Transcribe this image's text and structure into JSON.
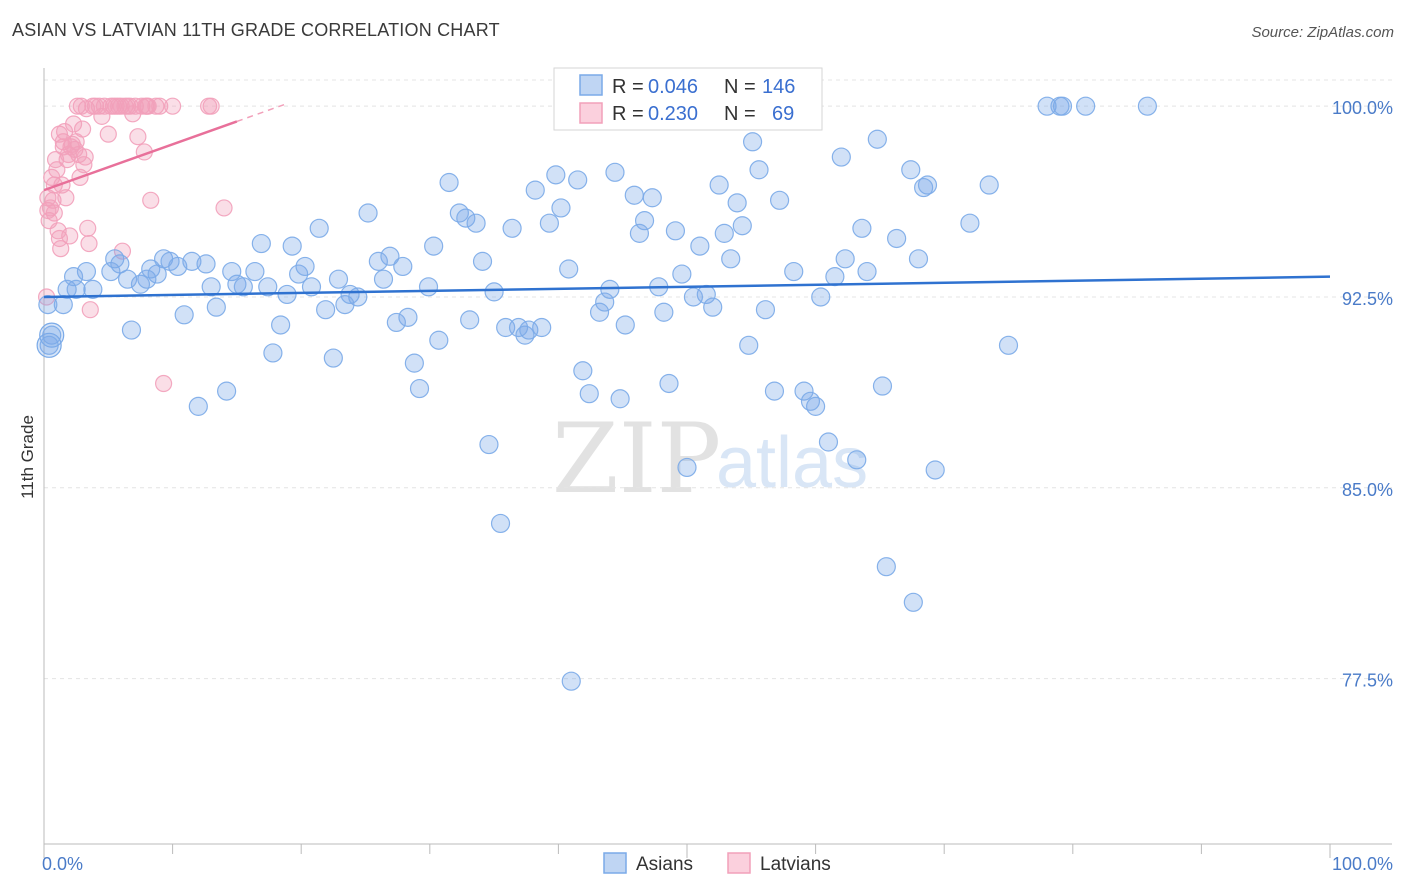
{
  "title": "ASIAN VS LATVIAN 11TH GRADE CORRELATION CHART",
  "source": "Source: ZipAtlas.com",
  "watermark": {
    "zip": "ZIP",
    "atlas": "atlas"
  },
  "colors": {
    "asian": "#7aaae8",
    "asian_line": "#2f72d0",
    "latvian": "#f2a0ba",
    "latvian_line": "#e8709a",
    "tick_text": "#4a7bc8"
  },
  "chart_data": {
    "type": "scatter",
    "title": "ASIAN VS LATVIAN 11TH GRADE CORRELATION CHART",
    "xlabel": "",
    "ylabel": "11th Grade",
    "xlim": [
      0,
      100
    ],
    "ylim": [
      71.0,
      101.5
    ],
    "y_ticks": [
      77.5,
      85.0,
      92.5,
      100.0
    ],
    "y_tick_labels": [
      "77.5%",
      "85.0%",
      "92.5%",
      "100.0%"
    ],
    "x_tick_labels": [
      "0.0%",
      "100.0%"
    ],
    "grid": true,
    "legend_position": "top-center",
    "legend": [
      {
        "series": "Asians",
        "r_label": "R =",
        "r_value": "0.046",
        "n_label": "N =",
        "n_value": "146"
      },
      {
        "series": "Latvians",
        "r_label": "R =",
        "r_value": "0.230",
        "n_label": "N =",
        "n_value": "69"
      }
    ],
    "series": [
      {
        "name": "Asians",
        "trend": {
          "x0": 0,
          "y0": 92.5,
          "x1": 100,
          "y1": 93.3
        },
        "points": [
          [
            0.3,
            92.2
          ],
          [
            0.4,
            90.6
          ],
          [
            0.6,
            91.0
          ],
          [
            1.5,
            92.2
          ],
          [
            1.8,
            92.8
          ],
          [
            2.3,
            93.3
          ],
          [
            2.5,
            92.8
          ],
          [
            3.3,
            93.5
          ],
          [
            3.8,
            92.8
          ],
          [
            5.2,
            93.5
          ],
          [
            5.5,
            94.0
          ],
          [
            5.9,
            93.8
          ],
          [
            6.5,
            93.2
          ],
          [
            6.8,
            91.2
          ],
          [
            7.5,
            93.0
          ],
          [
            8.0,
            93.2
          ],
          [
            8.3,
            93.6
          ],
          [
            8.8,
            93.4
          ],
          [
            9.3,
            94.0
          ],
          [
            9.8,
            93.9
          ],
          [
            10.4,
            93.7
          ],
          [
            10.9,
            91.8
          ],
          [
            11.5,
            93.9
          ],
          [
            12.0,
            88.2
          ],
          [
            12.6,
            93.8
          ],
          [
            13.0,
            92.9
          ],
          [
            13.4,
            92.1
          ],
          [
            14.2,
            88.8
          ],
          [
            14.6,
            93.5
          ],
          [
            15.0,
            93.0
          ],
          [
            15.5,
            92.9
          ],
          [
            16.4,
            93.5
          ],
          [
            16.9,
            94.6
          ],
          [
            17.4,
            92.9
          ],
          [
            17.8,
            90.3
          ],
          [
            18.4,
            91.4
          ],
          [
            18.9,
            92.6
          ],
          [
            19.3,
            94.5
          ],
          [
            19.8,
            93.4
          ],
          [
            20.3,
            93.7
          ],
          [
            20.8,
            92.9
          ],
          [
            21.4,
            95.2
          ],
          [
            21.9,
            92.0
          ],
          [
            22.5,
            90.1
          ],
          [
            22.9,
            93.2
          ],
          [
            23.4,
            92.2
          ],
          [
            23.8,
            92.6
          ],
          [
            24.4,
            92.5
          ],
          [
            25.2,
            95.8
          ],
          [
            26.0,
            93.9
          ],
          [
            26.4,
            93.2
          ],
          [
            26.9,
            94.1
          ],
          [
            27.4,
            91.5
          ],
          [
            27.9,
            93.7
          ],
          [
            28.3,
            91.7
          ],
          [
            28.8,
            89.9
          ],
          [
            29.2,
            88.9
          ],
          [
            29.9,
            92.9
          ],
          [
            30.3,
            94.5
          ],
          [
            30.7,
            90.8
          ],
          [
            31.5,
            97.0
          ],
          [
            32.3,
            95.8
          ],
          [
            32.8,
            95.6
          ],
          [
            33.1,
            91.6
          ],
          [
            33.6,
            95.4
          ],
          [
            34.1,
            93.9
          ],
          [
            34.6,
            86.7
          ],
          [
            35.0,
            92.7
          ],
          [
            35.5,
            83.6
          ],
          [
            35.9,
            91.3
          ],
          [
            36.4,
            95.2
          ],
          [
            36.9,
            91.3
          ],
          [
            37.4,
            91.0
          ],
          [
            37.7,
            91.2
          ],
          [
            38.2,
            96.7
          ],
          [
            38.7,
            91.3
          ],
          [
            39.3,
            95.4
          ],
          [
            39.8,
            97.3
          ],
          [
            40.2,
            96.0
          ],
          [
            40.8,
            93.6
          ],
          [
            41.0,
            77.4
          ],
          [
            41.5,
            97.1
          ],
          [
            41.9,
            89.6
          ],
          [
            42.4,
            88.7
          ],
          [
            43.2,
            91.9
          ],
          [
            43.6,
            92.3
          ],
          [
            44.0,
            92.8
          ],
          [
            44.4,
            97.4
          ],
          [
            44.8,
            88.5
          ],
          [
            45.2,
            91.4
          ],
          [
            45.9,
            96.5
          ],
          [
            46.3,
            95.0
          ],
          [
            46.7,
            95.5
          ],
          [
            47.3,
            96.4
          ],
          [
            47.8,
            92.9
          ],
          [
            48.2,
            91.9
          ],
          [
            48.6,
            89.1
          ],
          [
            49.1,
            95.1
          ],
          [
            49.6,
            93.4
          ],
          [
            50.0,
            85.8
          ],
          [
            50.5,
            92.5
          ],
          [
            51.0,
            94.5
          ],
          [
            51.5,
            92.6
          ],
          [
            52.0,
            92.1
          ],
          [
            52.5,
            96.9
          ],
          [
            52.9,
            95.0
          ],
          [
            53.4,
            94.0
          ],
          [
            53.9,
            96.2
          ],
          [
            54.3,
            95.3
          ],
          [
            54.8,
            90.6
          ],
          [
            55.1,
            98.6
          ],
          [
            55.6,
            97.5
          ],
          [
            56.1,
            92.0
          ],
          [
            56.8,
            88.8
          ],
          [
            57.2,
            96.3
          ],
          [
            58.3,
            93.5
          ],
          [
            59.1,
            88.8
          ],
          [
            59.6,
            88.4
          ],
          [
            60.0,
            88.2
          ],
          [
            60.4,
            92.5
          ],
          [
            61.0,
            86.8
          ],
          [
            61.5,
            93.3
          ],
          [
            62.0,
            98.0
          ],
          [
            62.3,
            94.0
          ],
          [
            63.2,
            86.1
          ],
          [
            63.6,
            95.2
          ],
          [
            64.0,
            93.5
          ],
          [
            64.8,
            98.7
          ],
          [
            65.2,
            89.0
          ],
          [
            65.5,
            81.9
          ],
          [
            66.3,
            94.8
          ],
          [
            67.4,
            97.5
          ],
          [
            67.6,
            80.5
          ],
          [
            68.0,
            94.0
          ],
          [
            68.4,
            96.8
          ],
          [
            68.7,
            96.9
          ],
          [
            69.3,
            85.7
          ],
          [
            72.0,
            95.4
          ],
          [
            73.5,
            96.9
          ],
          [
            75.0,
            90.6
          ],
          [
            78.0,
            100.0
          ],
          [
            79.2,
            100.0
          ],
          [
            81.0,
            100.0
          ],
          [
            85.8,
            100.0
          ],
          [
            79.0,
            100.0
          ]
        ]
      },
      {
        "name": "Latvians",
        "trend": {
          "x0": 0,
          "y0": 96.7,
          "x1": 15,
          "y1": 99.4
        },
        "points": [
          [
            0.2,
            92.5
          ],
          [
            0.3,
            95.9
          ],
          [
            0.3,
            96.4
          ],
          [
            0.4,
            95.5
          ],
          [
            0.5,
            96.0
          ],
          [
            0.6,
            97.2
          ],
          [
            0.7,
            96.3
          ],
          [
            0.8,
            95.8
          ],
          [
            0.8,
            96.9
          ],
          [
            0.9,
            97.9
          ],
          [
            1.0,
            97.5
          ],
          [
            1.1,
            95.1
          ],
          [
            1.2,
            94.8
          ],
          [
            1.2,
            98.9
          ],
          [
            1.3,
            94.4
          ],
          [
            1.4,
            96.9
          ],
          [
            1.5,
            98.4
          ],
          [
            1.5,
            98.6
          ],
          [
            1.6,
            99.0
          ],
          [
            1.7,
            96.4
          ],
          [
            1.8,
            97.9
          ],
          [
            1.9,
            98.1
          ],
          [
            2.0,
            94.9
          ],
          [
            2.1,
            98.4
          ],
          [
            2.2,
            98.5
          ],
          [
            2.3,
            99.3
          ],
          [
            2.4,
            98.3
          ],
          [
            2.5,
            98.6
          ],
          [
            2.6,
            100.0
          ],
          [
            2.7,
            98.1
          ],
          [
            2.8,
            97.2
          ],
          [
            2.9,
            100.0
          ],
          [
            3.0,
            99.1
          ],
          [
            3.1,
            97.7
          ],
          [
            3.2,
            98.0
          ],
          [
            3.3,
            99.9
          ],
          [
            3.4,
            95.2
          ],
          [
            3.5,
            94.6
          ],
          [
            3.6,
            92.0
          ],
          [
            3.8,
            100.0
          ],
          [
            4.0,
            100.0
          ],
          [
            4.3,
            100.0
          ],
          [
            4.5,
            99.6
          ],
          [
            4.7,
            100.0
          ],
          [
            5.0,
            98.9
          ],
          [
            5.2,
            100.0
          ],
          [
            5.4,
            100.0
          ],
          [
            5.6,
            100.0
          ],
          [
            5.8,
            100.0
          ],
          [
            6.0,
            100.0
          ],
          [
            6.1,
            94.3
          ],
          [
            6.3,
            100.0
          ],
          [
            6.5,
            100.0
          ],
          [
            6.7,
            100.0
          ],
          [
            6.9,
            99.7
          ],
          [
            7.1,
            100.0
          ],
          [
            7.3,
            98.8
          ],
          [
            7.6,
            100.0
          ],
          [
            7.8,
            98.2
          ],
          [
            7.9,
            100.0
          ],
          [
            8.0,
            100.0
          ],
          [
            8.1,
            100.0
          ],
          [
            8.3,
            96.3
          ],
          [
            8.7,
            100.0
          ],
          [
            9.0,
            100.0
          ],
          [
            9.3,
            89.1
          ],
          [
            10.0,
            100.0
          ],
          [
            12.8,
            100.0
          ],
          [
            13.0,
            100.0
          ],
          [
            14.0,
            96.0
          ]
        ]
      }
    ]
  }
}
